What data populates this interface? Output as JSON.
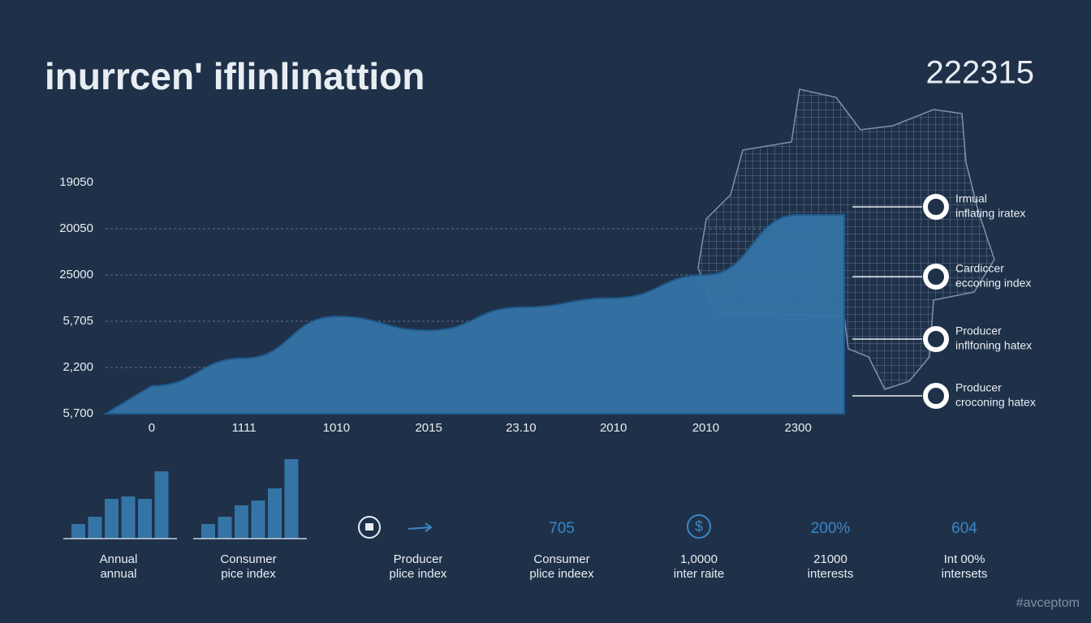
{
  "header": {
    "title": "inurrcen' iflinlinattion",
    "code": "222315"
  },
  "chart_data": [
    {
      "type": "area",
      "categories": [
        "0",
        "1111",
        "1010",
        "2015",
        "23.10",
        "2010",
        "2010",
        "2300"
      ],
      "values": [
        0.6,
        1.2,
        2.1,
        1.8,
        2.3,
        2.5,
        3.0,
        4.3
      ],
      "color": "#3574a6",
      "ylim": [
        0,
        5
      ],
      "yticks": [
        {
          "value": 0,
          "label": "5,700"
        },
        {
          "value": 1,
          "label": "2,200"
        },
        {
          "value": 2,
          "label": "5,705"
        },
        {
          "value": 3,
          "label": "25000"
        },
        {
          "value": 4,
          "label": "20050"
        },
        {
          "value": 5,
          "label": "19050"
        }
      ],
      "grid": true
    },
    {
      "type": "bar",
      "values": [
        18,
        27,
        49,
        52,
        49,
        83
      ],
      "color": "#3574a6",
      "ylim": [
        0,
        100
      ],
      "caption": [
        "Annual",
        "annual"
      ]
    },
    {
      "type": "bar",
      "values": [
        18,
        27,
        41,
        47,
        62,
        98
      ],
      "color": "#3574a6",
      "ylim": [
        0,
        100
      ],
      "caption": [
        "Consumer",
        "pice index"
      ]
    }
  ],
  "legend": [
    {
      "lines": [
        "Irmual",
        "inflating iratex"
      ]
    },
    {
      "lines": [
        "Cardiccer",
        "ecconing index"
      ]
    },
    {
      "lines": [
        "Producer",
        "inflfoning hatex"
      ]
    },
    {
      "lines": [
        "Producer",
        "croconing hatex"
      ]
    }
  ],
  "stats": [
    {
      "lines": [
        "Producer",
        "plice index"
      ]
    },
    {
      "value": "705",
      "lines": [
        "Consumer",
        "plice indeex"
      ]
    },
    {
      "lines": [
        "1,0000",
        "inter raite"
      ]
    },
    {
      "value": "200%",
      "lines": [
        "21000",
        "interests"
      ]
    },
    {
      "value": "604",
      "lines": [
        "Int 00%",
        "intersets"
      ]
    }
  ],
  "watermark": "#avceptom"
}
